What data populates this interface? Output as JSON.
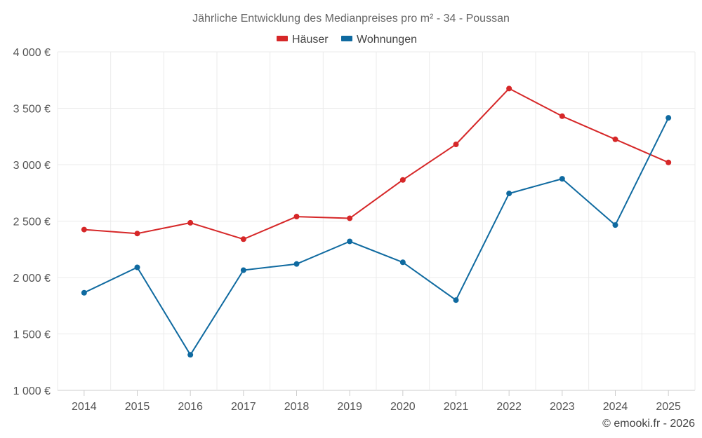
{
  "chart_data": {
    "type": "line",
    "title": "Jährliche Entwicklung des Medianpreises pro m² - 34 - Poussan",
    "categories": [
      "2014",
      "2015",
      "2016",
      "2017",
      "2018",
      "2019",
      "2020",
      "2021",
      "2022",
      "2023",
      "2024",
      "2025"
    ],
    "series": [
      {
        "name": "Häuser",
        "color": "#d62728",
        "values": [
          2425,
          2390,
          2485,
          2340,
          2540,
          2525,
          2865,
          3180,
          3675,
          3430,
          3225,
          3020
        ]
      },
      {
        "name": "Wohnungen",
        "color": "#0f6aa0",
        "values": [
          1865,
          2090,
          1315,
          2065,
          2120,
          2320,
          2135,
          1800,
          2745,
          2875,
          2465,
          3415
        ]
      }
    ],
    "ylim": [
      1000,
      4000
    ],
    "yticks": [
      1000,
      1500,
      2000,
      2500,
      3000,
      3500,
      4000
    ],
    "ytick_labels": [
      "1 000 €",
      "1 500 €",
      "2 000 €",
      "2 500 €",
      "3 000 €",
      "3 500 €",
      "4 000 €"
    ],
    "xlabel": "",
    "ylabel": "",
    "grid": true,
    "legend_position": "top-center"
  },
  "credit": "© emooki.fr - 2026"
}
